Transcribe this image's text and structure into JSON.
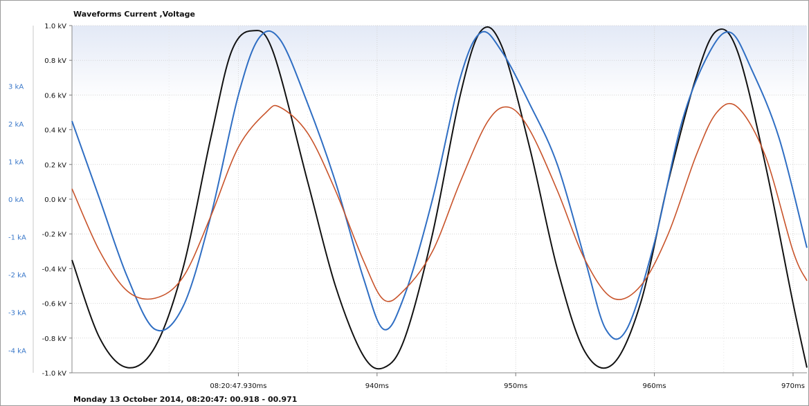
{
  "chart_data": {
    "type": "line",
    "title": "Waveforms Current ,Voltage",
    "footer": "Monday 13 October 2014, 08:20:47: 00.918 - 00.971",
    "x_range_ms": [
      918,
      971
    ],
    "x_ticks": [
      {
        "x": 930,
        "label": "08:20:47.930ms"
      },
      {
        "x": 940,
        "label": "940ms"
      },
      {
        "x": 950,
        "label": "950ms"
      },
      {
        "x": 960,
        "label": "960ms"
      },
      {
        "x": 970,
        "label": "970ms"
      }
    ],
    "y_current": {
      "unit": "kA",
      "range": [
        -4.6,
        4.6
      ],
      "ticks": [
        "3 kA",
        "2 kA",
        "1 kA",
        "0 kA",
        "-1 kA",
        "-2 kA",
        "-3 kA",
        "-4 kA"
      ],
      "tick_values": [
        3,
        2,
        1,
        0,
        -1,
        -2,
        -3,
        -4
      ]
    },
    "y_voltage": {
      "unit": "kV",
      "range": [
        -1.0,
        1.0
      ],
      "ticks": [
        "1.0 kV",
        "0.8 kV",
        "0.6 kV",
        "0.4 kV",
        "0.2 kV",
        "0.0 kV",
        "-0.2 kV",
        "-0.4 kV",
        "-0.6 kV",
        "-0.8 kV",
        "-1.0 kV"
      ],
      "tick_values": [
        1.0,
        0.8,
        0.6,
        0.4,
        0.2,
        0.0,
        -0.2,
        -0.4,
        -0.6,
        -0.8,
        -1.0
      ]
    },
    "grid": true,
    "series": [
      {
        "color": "#111111",
        "axis": "voltage",
        "points": [
          [
            918,
            -0.35
          ],
          [
            920,
            -0.8
          ],
          [
            922,
            -0.97
          ],
          [
            924,
            -0.85
          ],
          [
            926,
            -0.4
          ],
          [
            928,
            0.35
          ],
          [
            929.5,
            0.85
          ],
          [
            931,
            0.97
          ],
          [
            932.5,
            0.85
          ],
          [
            935,
            0.1
          ],
          [
            937,
            -0.5
          ],
          [
            939,
            -0.9
          ],
          [
            940.5,
            -0.97
          ],
          [
            942,
            -0.8
          ],
          [
            944,
            -0.2
          ],
          [
            946,
            0.6
          ],
          [
            947.5,
            0.97
          ],
          [
            949,
            0.88
          ],
          [
            951,
            0.3
          ],
          [
            953,
            -0.4
          ],
          [
            955,
            -0.88
          ],
          [
            957,
            -0.95
          ],
          [
            959,
            -0.6
          ],
          [
            961,
            0.1
          ],
          [
            963,
            0.7
          ],
          [
            964.5,
            0.97
          ],
          [
            966,
            0.85
          ],
          [
            968,
            0.2
          ],
          [
            970,
            -0.6
          ],
          [
            971,
            -0.97
          ]
        ]
      },
      {
        "color": "#2f6ec3",
        "axis": "voltage",
        "points": [
          [
            918,
            0.45
          ],
          [
            920,
            0.0
          ],
          [
            922,
            -0.45
          ],
          [
            924,
            -0.75
          ],
          [
            926,
            -0.62
          ],
          [
            928,
            -0.1
          ],
          [
            930,
            0.6
          ],
          [
            931.5,
            0.93
          ],
          [
            933,
            0.92
          ],
          [
            935,
            0.55
          ],
          [
            937,
            0.1
          ],
          [
            939,
            -0.45
          ],
          [
            940.5,
            -0.75
          ],
          [
            942,
            -0.55
          ],
          [
            944,
            0.0
          ],
          [
            946,
            0.7
          ],
          [
            947.5,
            0.96
          ],
          [
            949,
            0.85
          ],
          [
            951,
            0.55
          ],
          [
            953,
            0.2
          ],
          [
            955,
            -0.35
          ],
          [
            956.5,
            -0.75
          ],
          [
            958,
            -0.75
          ],
          [
            960,
            -0.25
          ],
          [
            962,
            0.45
          ],
          [
            964,
            0.85
          ],
          [
            965.5,
            0.96
          ],
          [
            967,
            0.75
          ],
          [
            969,
            0.35
          ],
          [
            971,
            -0.28
          ]
        ]
      },
      {
        "color": "#c8532a",
        "axis": "voltage",
        "points": [
          [
            918,
            0.06
          ],
          [
            920,
            -0.3
          ],
          [
            922,
            -0.53
          ],
          [
            924,
            -0.57
          ],
          [
            926,
            -0.45
          ],
          [
            928,
            -0.1
          ],
          [
            930,
            0.3
          ],
          [
            932,
            0.5
          ],
          [
            933,
            0.53
          ],
          [
            935,
            0.38
          ],
          [
            937,
            0.05
          ],
          [
            939,
            -0.35
          ],
          [
            940.5,
            -0.58
          ],
          [
            942,
            -0.52
          ],
          [
            944,
            -0.3
          ],
          [
            946,
            0.1
          ],
          [
            948,
            0.45
          ],
          [
            949.5,
            0.53
          ],
          [
            951,
            0.4
          ],
          [
            953,
            0.05
          ],
          [
            955,
            -0.35
          ],
          [
            957,
            -0.57
          ],
          [
            959,
            -0.5
          ],
          [
            961,
            -0.2
          ],
          [
            963,
            0.25
          ],
          [
            964.5,
            0.5
          ],
          [
            966,
            0.53
          ],
          [
            968,
            0.25
          ],
          [
            970,
            -0.3
          ],
          [
            971,
            -0.47
          ]
        ]
      }
    ]
  }
}
